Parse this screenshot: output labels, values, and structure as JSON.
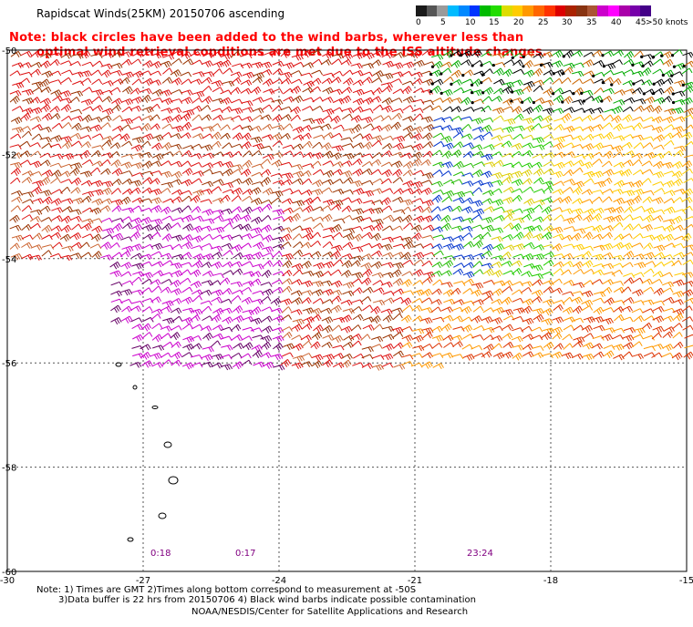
{
  "header": {
    "title": "Rapidscat Winds(25KM) 20150706 ascending",
    "note_line1": "Note: black circles have been added to the wind barbs, wherever less than",
    "note_line2": "optimal wind retrieval conditions are met due to the ISS altitude changes."
  },
  "colorbar": {
    "colors": [
      "#1a1a1a",
      "#555555",
      "#9a9a9a",
      "#00bbff",
      "#0088ff",
      "#0033ff",
      "#00bb00",
      "#22dd00",
      "#dddd00",
      "#ffcc00",
      "#ff9900",
      "#ff6600",
      "#ff3300",
      "#dd0000",
      "#aa2200",
      "#883311",
      "#aa5533",
      "#cc00cc",
      "#ff00ff",
      "#aa00aa",
      "#7700aa",
      "#440088"
    ],
    "labels": [
      "0",
      "5",
      "10",
      "15",
      "20",
      "25",
      "30",
      "35",
      "40",
      "45",
      ">50 knots"
    ]
  },
  "map": {
    "lat_labels": [
      "-50",
      "-52",
      "-54",
      "-56",
      "-58",
      "-60"
    ],
    "lon_labels": [
      "-30",
      "-27",
      "-24",
      "-21",
      "-18",
      "-15"
    ],
    "time_labels": [
      "0:18",
      "0:17",
      "23:24"
    ]
  },
  "footer": {
    "line1": "Note: 1) Times are GMT 2)Times along bottom correspond to measurement at -50S",
    "line2": "3)Data buffer is 22 hrs from 20150706 4) Black wind barbs indicate possible contamination",
    "line3": "NOAA/NESDIS/Center for Satellite Applications and Research"
  }
}
